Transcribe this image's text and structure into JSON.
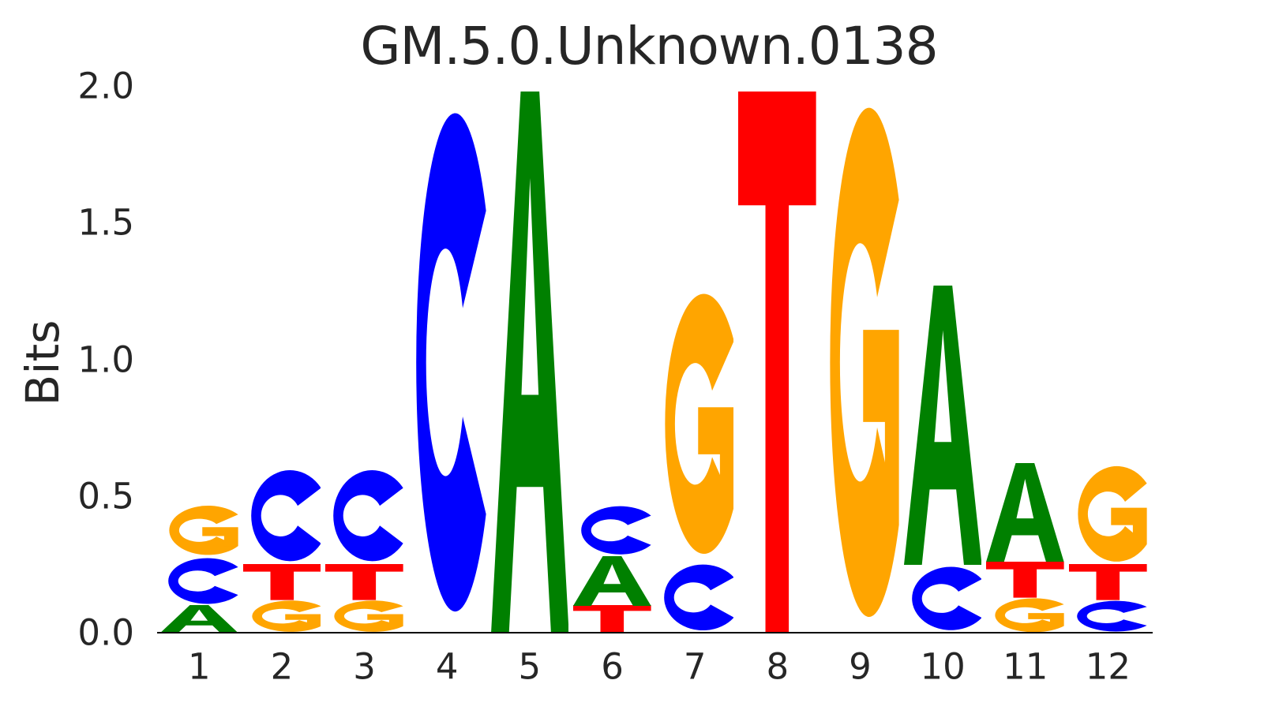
{
  "chart_data": {
    "type": "sequence_logo",
    "title": "GM.5.0.Unknown.0138",
    "xlabel": "",
    "ylabel": "Bits",
    "ylim": [
      0.0,
      2.0
    ],
    "xlim": [
      1,
      12
    ],
    "grid": false,
    "legend": "none",
    "ytick_labels": [
      "2.0",
      "1.5",
      "1.0",
      "0.5",
      "0.0"
    ],
    "ytick_values": [
      2.0,
      1.5,
      1.0,
      0.5,
      0.0
    ],
    "xtick_labels": [
      "1",
      "2",
      "3",
      "4",
      "5",
      "6",
      "7",
      "8",
      "9",
      "10",
      "11",
      "12"
    ],
    "text_color": "#262626",
    "axis_color": "#000000",
    "background_color": "#ffffff",
    "base_colors": {
      "A": "#008000",
      "C": "#0000ff",
      "G": "#ffa500",
      "T": "#ff0000"
    },
    "positions": [
      {
        "position": 1,
        "stack": [
          {
            "base": "A",
            "bits": 0.1
          },
          {
            "base": "C",
            "bits": 0.18
          },
          {
            "base": "G",
            "bits": 0.19
          }
        ]
      },
      {
        "position": 2,
        "stack": [
          {
            "base": "G",
            "bits": 0.12
          },
          {
            "base": "T",
            "bits": 0.13
          },
          {
            "base": "C",
            "bits": 0.36
          }
        ]
      },
      {
        "position": 3,
        "stack": [
          {
            "base": "G",
            "bits": 0.12
          },
          {
            "base": "T",
            "bits": 0.13
          },
          {
            "base": "C",
            "bits": 0.36
          }
        ]
      },
      {
        "position": 4,
        "stack": [
          {
            "base": "C",
            "bits": 1.98
          }
        ]
      },
      {
        "position": 5,
        "stack": [
          {
            "base": "A",
            "bits": 1.98
          }
        ]
      },
      {
        "position": 6,
        "stack": [
          {
            "base": "T",
            "bits": 0.1
          },
          {
            "base": "A",
            "bits": 0.18
          },
          {
            "base": "C",
            "bits": 0.19
          }
        ]
      },
      {
        "position": 7,
        "stack": [
          {
            "base": "C",
            "bits": 0.26
          },
          {
            "base": "G",
            "bits": 1.01
          }
        ]
      },
      {
        "position": 8,
        "stack": [
          {
            "base": "T",
            "bits": 1.98
          }
        ]
      },
      {
        "position": 9,
        "stack": [
          {
            "base": "G",
            "bits": 1.98
          }
        ]
      },
      {
        "position": 10,
        "stack": [
          {
            "base": "C",
            "bits": 0.25
          },
          {
            "base": "A",
            "bits": 1.02
          }
        ]
      },
      {
        "position": 11,
        "stack": [
          {
            "base": "G",
            "bits": 0.13
          },
          {
            "base": "T",
            "bits": 0.13
          },
          {
            "base": "A",
            "bits": 0.36
          }
        ]
      },
      {
        "position": 12,
        "stack": [
          {
            "base": "C",
            "bits": 0.12
          },
          {
            "base": "T",
            "bits": 0.13
          },
          {
            "base": "G",
            "bits": 0.37
          }
        ]
      }
    ]
  }
}
